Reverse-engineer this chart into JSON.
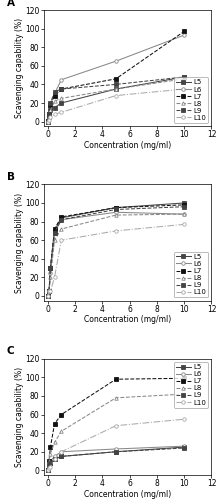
{
  "x": [
    0.0,
    0.1,
    0.2,
    0.5,
    1.0,
    5.0,
    10.0
  ],
  "panel_A": {
    "title": "A",
    "ylabel": "Scavenging capability (%)",
    "xlabel": "Concentration (mg/ml)",
    "ylim": [
      -5,
      120
    ],
    "yticks": [
      0,
      20,
      40,
      60,
      80,
      100,
      120
    ],
    "xlim": [
      -0.3,
      12
    ],
    "xticks": [
      0,
      2,
      4,
      6,
      8,
      10,
      12
    ],
    "legend_loc": "lower right",
    "series": {
      "L5": [
        0,
        5,
        12,
        15,
        20,
        35,
        48
      ],
      "L6": [
        2,
        7,
        18,
        30,
        45,
        65,
        93
      ],
      "L7": [
        1,
        8,
        18,
        28,
        35,
        46,
        97
      ],
      "L8": [
        0,
        5,
        12,
        22,
        25,
        35,
        46
      ],
      "L9": [
        0,
        8,
        20,
        32,
        35,
        40,
        48
      ],
      "L10": [
        0,
        2,
        5,
        8,
        10,
        28,
        35
      ]
    }
  },
  "panel_B": {
    "title": "B",
    "ylabel": "Scavenging capability (%)",
    "xlabel": "Concentration (mg/ml)",
    "ylim": [
      -5,
      120
    ],
    "yticks": [
      0,
      20,
      40,
      60,
      80,
      100,
      120
    ],
    "xlim": [
      -0.3,
      12
    ],
    "xticks": [
      0,
      2,
      4,
      6,
      8,
      10,
      12
    ],
    "legend_loc": "lower right",
    "series": {
      "L5": [
        0,
        5,
        30,
        70,
        84,
        95,
        100
      ],
      "L6": [
        0,
        5,
        25,
        68,
        82,
        90,
        88
      ],
      "L7": [
        0,
        5,
        30,
        72,
        85,
        95,
        98
      ],
      "L8": [
        0,
        5,
        20,
        60,
        72,
        87,
        88
      ],
      "L9": [
        0,
        5,
        30,
        68,
        82,
        93,
        96
      ],
      "L10": [
        0,
        5,
        5,
        20,
        60,
        70,
        77
      ]
    }
  },
  "panel_C": {
    "title": "C",
    "ylabel": "Scavenging capability (%)",
    "xlabel": "Concentration (mg/ml)",
    "ylim": [
      -5,
      120
    ],
    "yticks": [
      0,
      20,
      40,
      60,
      80,
      100,
      120
    ],
    "xlim": [
      -0.3,
      12
    ],
    "xticks": [
      0,
      2,
      4,
      6,
      8,
      10,
      12
    ],
    "legend_loc": "upper right",
    "series": {
      "L5": [
        0,
        5,
        8,
        12,
        15,
        20,
        25
      ],
      "L6": [
        0,
        5,
        10,
        15,
        20,
        23,
        26
      ],
      "L7": [
        0,
        10,
        25,
        50,
        60,
        98,
        99
      ],
      "L8": [
        0,
        10,
        18,
        30,
        42,
        78,
        82
      ],
      "L9": [
        0,
        5,
        8,
        12,
        15,
        20,
        24
      ],
      "L10": [
        0,
        2,
        4,
        12,
        20,
        48,
        55
      ]
    }
  },
  "line_styles": {
    "L5": {
      "color": "#444444",
      "linestyle": "-",
      "marker": "s",
      "markerfill": "#444444"
    },
    "L6": {
      "color": "#888888",
      "linestyle": "-",
      "marker": "o",
      "markerfill": "white"
    },
    "L7": {
      "color": "#111111",
      "linestyle": "--",
      "marker": "s",
      "markerfill": "#111111"
    },
    "L8": {
      "color": "#888888",
      "linestyle": "--",
      "marker": "^",
      "markerfill": "white"
    },
    "L9": {
      "color": "#444444",
      "linestyle": "--",
      "marker": "s",
      "markerfill": "#444444"
    },
    "L10": {
      "color": "#aaaaaa",
      "linestyle": "-.",
      "marker": "o",
      "markerfill": "white"
    }
  },
  "fontsize": 5.5,
  "markersize": 2.5
}
